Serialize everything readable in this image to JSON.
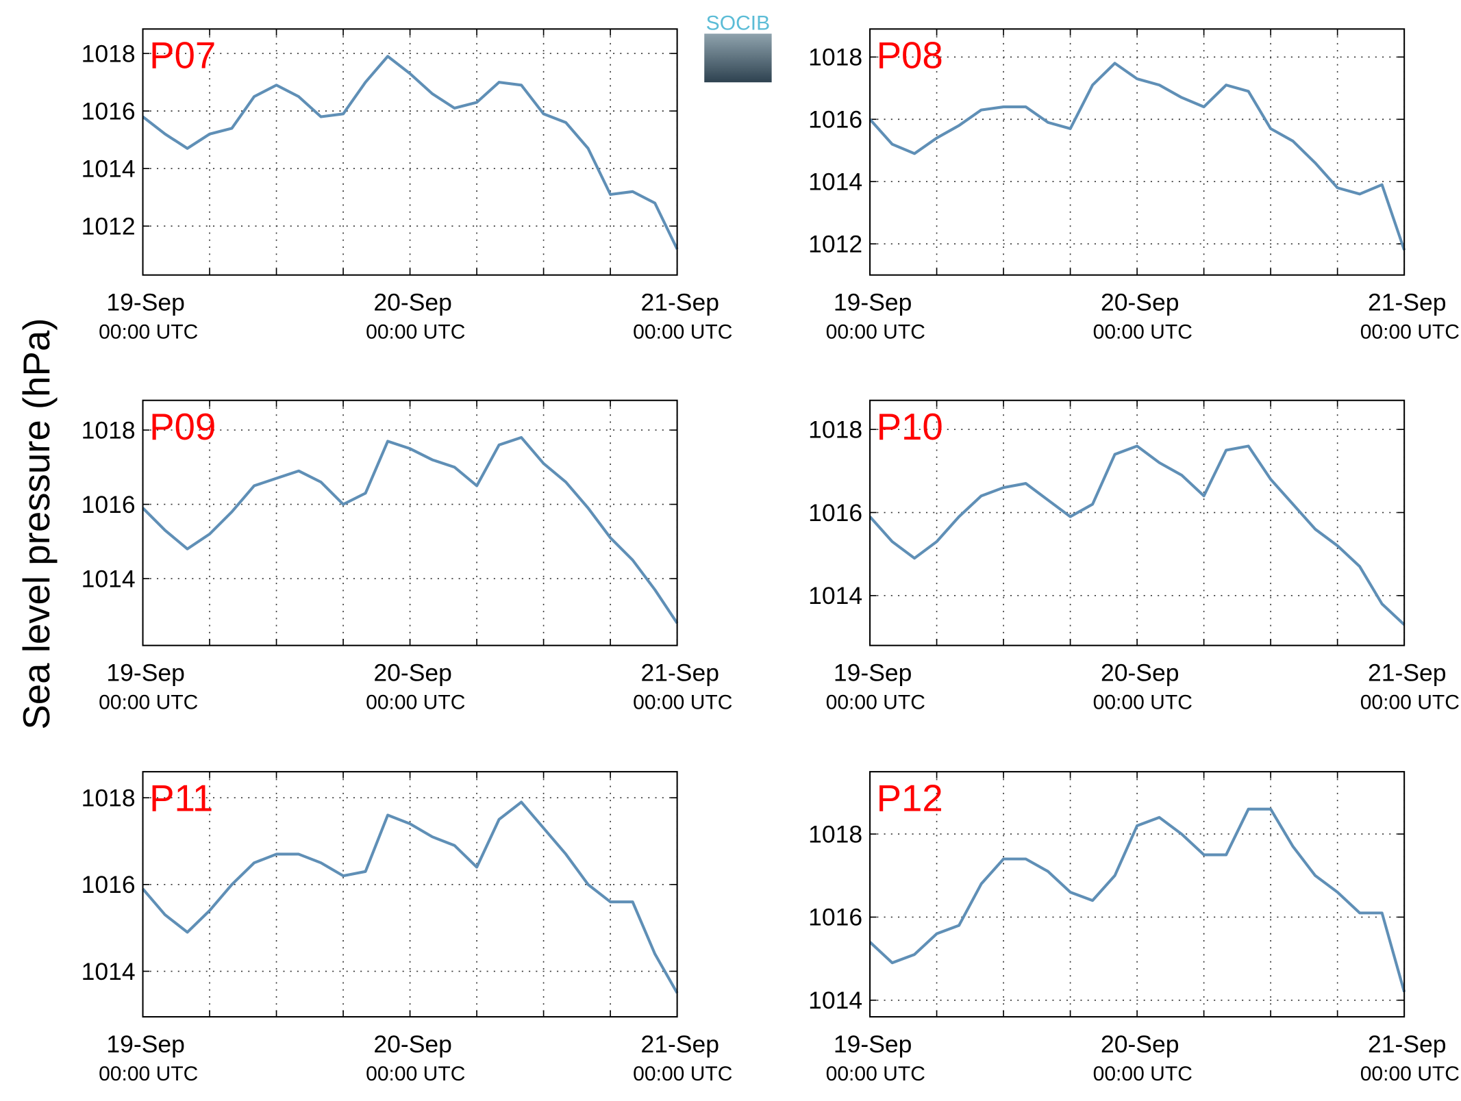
{
  "ylabel": "Sea level pressure (hPa)",
  "logo": "SOCIB",
  "chart_data": [
    {
      "type": "line",
      "title": "P07",
      "color": "#5f8fb6",
      "x": [
        "19-Sep 00:00",
        "19-Sep 02:00",
        "19-Sep 04:00",
        "19-Sep 06:00",
        "19-Sep 08:00",
        "19-Sep 10:00",
        "19-Sep 12:00",
        "19-Sep 14:00",
        "19-Sep 16:00",
        "19-Sep 18:00",
        "19-Sep 20:00",
        "19-Sep 22:00",
        "20-Sep 00:00",
        "20-Sep 02:00",
        "20-Sep 04:00",
        "20-Sep 06:00",
        "20-Sep 08:00",
        "20-Sep 10:00",
        "20-Sep 12:00",
        "20-Sep 14:00",
        "20-Sep 16:00",
        "20-Sep 18:00",
        "20-Sep 20:00",
        "20-Sep 22:00",
        "21-Sep 00:00"
      ],
      "values": [
        1015.8,
        1015.2,
        1014.7,
        1015.2,
        1015.4,
        1016.5,
        1016.9,
        1016.5,
        1015.8,
        1015.9,
        1017.0,
        1017.9,
        1017.3,
        1016.6,
        1016.1,
        1016.3,
        1017.0,
        1016.9,
        1015.9,
        1015.6,
        1014.7,
        1013.1,
        1013.2,
        1012.8,
        1011.2
      ],
      "ylim": [
        1010.3,
        1018.85
      ],
      "yticks": [
        1012,
        1014,
        1016,
        1018
      ],
      "xlim": [
        "19-Sep 00:00",
        "21-Sep 00:00"
      ],
      "xticks": [
        {
          "value": "19-Sep 00:00",
          "label": [
            "19-Sep",
            "00:00 UTC"
          ]
        },
        {
          "value": "19-Sep 06:00",
          "label": null
        },
        {
          "value": "19-Sep 12:00",
          "label": null
        },
        {
          "value": "19-Sep 18:00",
          "label": null
        },
        {
          "value": "20-Sep 00:00",
          "label": [
            "20-Sep",
            "00:00 UTC"
          ]
        },
        {
          "value": "20-Sep 06:00",
          "label": null
        },
        {
          "value": "20-Sep 12:00",
          "label": null
        },
        {
          "value": "20-Sep 18:00",
          "label": null
        },
        {
          "value": "21-Sep 00:00",
          "label": [
            "21-Sep",
            "00:00 UTC"
          ]
        }
      ],
      "grid": true
    },
    {
      "type": "line",
      "title": "P08",
      "color": "#5f8fb6",
      "x": [
        "19-Sep 00:00",
        "19-Sep 02:00",
        "19-Sep 04:00",
        "19-Sep 06:00",
        "19-Sep 08:00",
        "19-Sep 10:00",
        "19-Sep 12:00",
        "19-Sep 14:00",
        "19-Sep 16:00",
        "19-Sep 18:00",
        "19-Sep 20:00",
        "19-Sep 22:00",
        "20-Sep 00:00",
        "20-Sep 02:00",
        "20-Sep 04:00",
        "20-Sep 06:00",
        "20-Sep 08:00",
        "20-Sep 10:00",
        "20-Sep 12:00",
        "20-Sep 14:00",
        "20-Sep 16:00",
        "20-Sep 18:00",
        "20-Sep 20:00",
        "20-Sep 22:00",
        "21-Sep 00:00"
      ],
      "values": [
        1016.0,
        1015.2,
        1014.9,
        1015.4,
        1015.8,
        1016.3,
        1016.4,
        1016.4,
        1015.9,
        1015.7,
        1017.1,
        1017.8,
        1017.3,
        1017.1,
        1016.7,
        1016.4,
        1017.1,
        1016.9,
        1015.7,
        1015.3,
        1014.6,
        1013.8,
        1013.6,
        1013.9,
        1011.8
      ],
      "ylim": [
        1011.0,
        1018.9
      ],
      "yticks": [
        1012,
        1014,
        1016,
        1018
      ],
      "xlim": [
        "19-Sep 00:00",
        "21-Sep 00:00"
      ],
      "xticks": [
        {
          "value": "19-Sep 00:00",
          "label": [
            "19-Sep",
            "00:00 UTC"
          ]
        },
        {
          "value": "19-Sep 06:00",
          "label": null
        },
        {
          "value": "19-Sep 12:00",
          "label": null
        },
        {
          "value": "19-Sep 18:00",
          "label": null
        },
        {
          "value": "20-Sep 00:00",
          "label": [
            "20-Sep",
            "00:00 UTC"
          ]
        },
        {
          "value": "20-Sep 06:00",
          "label": null
        },
        {
          "value": "20-Sep 12:00",
          "label": null
        },
        {
          "value": "20-Sep 18:00",
          "label": null
        },
        {
          "value": "21-Sep 00:00",
          "label": [
            "21-Sep",
            "00:00 UTC"
          ]
        }
      ],
      "grid": true
    },
    {
      "type": "line",
      "title": "P09",
      "color": "#5f8fb6",
      "x": [
        "19-Sep 00:00",
        "19-Sep 02:00",
        "19-Sep 04:00",
        "19-Sep 06:00",
        "19-Sep 08:00",
        "19-Sep 10:00",
        "19-Sep 12:00",
        "19-Sep 14:00",
        "19-Sep 16:00",
        "19-Sep 18:00",
        "19-Sep 20:00",
        "19-Sep 22:00",
        "20-Sep 00:00",
        "20-Sep 02:00",
        "20-Sep 04:00",
        "20-Sep 06:00",
        "20-Sep 08:00",
        "20-Sep 10:00",
        "20-Sep 12:00",
        "20-Sep 14:00",
        "20-Sep 16:00",
        "20-Sep 18:00",
        "20-Sep 20:00",
        "20-Sep 22:00",
        "21-Sep 00:00"
      ],
      "values": [
        1015.9,
        1015.3,
        1014.8,
        1015.2,
        1015.8,
        1016.5,
        1016.7,
        1016.9,
        1016.6,
        1016.0,
        1016.3,
        1017.7,
        1017.5,
        1017.2,
        1017.0,
        1016.5,
        1017.6,
        1017.8,
        1017.1,
        1016.6,
        1015.9,
        1015.1,
        1014.5,
        1013.7,
        1012.8
      ],
      "ylim": [
        1012.2,
        1018.8
      ],
      "yticks": [
        1014,
        1016,
        1018
      ],
      "xlim": [
        "19-Sep 00:00",
        "21-Sep 00:00"
      ],
      "xticks": [
        {
          "value": "19-Sep 00:00",
          "label": [
            "19-Sep",
            "00:00 UTC"
          ]
        },
        {
          "value": "19-Sep 06:00",
          "label": null
        },
        {
          "value": "19-Sep 12:00",
          "label": null
        },
        {
          "value": "19-Sep 18:00",
          "label": null
        },
        {
          "value": "20-Sep 00:00",
          "label": [
            "20-Sep",
            "00:00 UTC"
          ]
        },
        {
          "value": "20-Sep 06:00",
          "label": null
        },
        {
          "value": "20-Sep 12:00",
          "label": null
        },
        {
          "value": "20-Sep 18:00",
          "label": null
        },
        {
          "value": "21-Sep 00:00",
          "label": [
            "21-Sep",
            "00:00 UTC"
          ]
        }
      ],
      "grid": true
    },
    {
      "type": "line",
      "title": "P10",
      "color": "#5f8fb6",
      "x": [
        "19-Sep 00:00",
        "19-Sep 02:00",
        "19-Sep 04:00",
        "19-Sep 06:00",
        "19-Sep 08:00",
        "19-Sep 10:00",
        "19-Sep 12:00",
        "19-Sep 14:00",
        "19-Sep 16:00",
        "19-Sep 18:00",
        "19-Sep 20:00",
        "19-Sep 22:00",
        "20-Sep 00:00",
        "20-Sep 02:00",
        "20-Sep 04:00",
        "20-Sep 06:00",
        "20-Sep 08:00",
        "20-Sep 10:00",
        "20-Sep 12:00",
        "20-Sep 14:00",
        "20-Sep 16:00",
        "20-Sep 18:00",
        "20-Sep 20:00",
        "20-Sep 22:00",
        "21-Sep 00:00"
      ],
      "values": [
        1015.9,
        1015.3,
        1014.9,
        1015.3,
        1015.9,
        1016.4,
        1016.6,
        1016.7,
        1016.3,
        1015.9,
        1016.2,
        1017.4,
        1017.6,
        1017.2,
        1016.9,
        1016.4,
        1017.5,
        1017.6,
        1016.8,
        1016.2,
        1015.6,
        1015.2,
        1014.7,
        1013.8,
        1013.3
      ],
      "ylim": [
        1012.8,
        1018.7
      ],
      "yticks": [
        1014,
        1016,
        1018
      ],
      "xlim": [
        "19-Sep 00:00",
        "21-Sep 00:00"
      ],
      "xticks": [
        {
          "value": "19-Sep 00:00",
          "label": [
            "19-Sep",
            "00:00 UTC"
          ]
        },
        {
          "value": "19-Sep 06:00",
          "label": null
        },
        {
          "value": "19-Sep 12:00",
          "label": null
        },
        {
          "value": "19-Sep 18:00",
          "label": null
        },
        {
          "value": "20-Sep 00:00",
          "label": [
            "20-Sep",
            "00:00 UTC"
          ]
        },
        {
          "value": "20-Sep 06:00",
          "label": null
        },
        {
          "value": "20-Sep 12:00",
          "label": null
        },
        {
          "value": "20-Sep 18:00",
          "label": null
        },
        {
          "value": "21-Sep 00:00",
          "label": [
            "21-Sep",
            "00:00 UTC"
          ]
        }
      ],
      "grid": true
    },
    {
      "type": "line",
      "title": "P11",
      "color": "#5f8fb6",
      "x": [
        "19-Sep 00:00",
        "19-Sep 02:00",
        "19-Sep 04:00",
        "19-Sep 06:00",
        "19-Sep 08:00",
        "19-Sep 10:00",
        "19-Sep 12:00",
        "19-Sep 14:00",
        "19-Sep 16:00",
        "19-Sep 18:00",
        "19-Sep 20:00",
        "19-Sep 22:00",
        "20-Sep 00:00",
        "20-Sep 02:00",
        "20-Sep 04:00",
        "20-Sep 06:00",
        "20-Sep 08:00",
        "20-Sep 10:00",
        "20-Sep 12:00",
        "20-Sep 14:00",
        "20-Sep 16:00",
        "20-Sep 18:00",
        "20-Sep 20:00",
        "20-Sep 22:00",
        "21-Sep 00:00"
      ],
      "values": [
        1015.9,
        1015.3,
        1014.9,
        1015.4,
        1016.0,
        1016.5,
        1016.7,
        1016.7,
        1016.5,
        1016.2,
        1016.3,
        1017.6,
        1017.4,
        1017.1,
        1016.9,
        1016.4,
        1017.5,
        1017.9,
        1017.3,
        1016.7,
        1016.0,
        1015.6,
        1015.6,
        1014.4,
        1013.5
      ],
      "ylim": [
        1012.95,
        1018.6
      ],
      "yticks": [
        1014,
        1016,
        1018
      ],
      "xlim": [
        "19-Sep 00:00",
        "21-Sep 00:00"
      ],
      "xticks": [
        {
          "value": "19-Sep 00:00",
          "label": [
            "19-Sep",
            "00:00 UTC"
          ]
        },
        {
          "value": "19-Sep 06:00",
          "label": null
        },
        {
          "value": "19-Sep 12:00",
          "label": null
        },
        {
          "value": "19-Sep 18:00",
          "label": null
        },
        {
          "value": "20-Sep 00:00",
          "label": [
            "20-Sep",
            "00:00 UTC"
          ]
        },
        {
          "value": "20-Sep 06:00",
          "label": null
        },
        {
          "value": "20-Sep 12:00",
          "label": null
        },
        {
          "value": "20-Sep 18:00",
          "label": null
        },
        {
          "value": "21-Sep 00:00",
          "label": [
            "21-Sep",
            "00:00 UTC"
          ]
        }
      ],
      "grid": true
    },
    {
      "type": "line",
      "title": "P12",
      "color": "#5f8fb6",
      "x": [
        "19-Sep 00:00",
        "19-Sep 02:00",
        "19-Sep 04:00",
        "19-Sep 06:00",
        "19-Sep 08:00",
        "19-Sep 10:00",
        "19-Sep 12:00",
        "19-Sep 14:00",
        "19-Sep 16:00",
        "19-Sep 18:00",
        "19-Sep 20:00",
        "19-Sep 22:00",
        "20-Sep 00:00",
        "20-Sep 02:00",
        "20-Sep 04:00",
        "20-Sep 06:00",
        "20-Sep 08:00",
        "20-Sep 10:00",
        "20-Sep 12:00",
        "20-Sep 14:00",
        "20-Sep 16:00",
        "20-Sep 18:00",
        "20-Sep 20:00",
        "20-Sep 22:00",
        "21-Sep 00:00"
      ],
      "values": [
        1015.4,
        1014.9,
        1015.1,
        1015.6,
        1015.8,
        1016.8,
        1017.4,
        1017.4,
        1017.1,
        1016.6,
        1016.4,
        1017.0,
        1018.2,
        1018.4,
        1018.0,
        1017.5,
        1017.5,
        1018.6,
        1018.6,
        1017.7,
        1017.0,
        1016.6,
        1016.1,
        1016.1,
        1014.2
      ],
      "ylim": [
        1013.6,
        1019.5
      ],
      "yticks": [
        1014,
        1016,
        1018
      ],
      "xlim": [
        "19-Sep 00:00",
        "21-Sep 00:00"
      ],
      "xticks": [
        {
          "value": "19-Sep 00:00",
          "label": [
            "19-Sep",
            "00:00 UTC"
          ]
        },
        {
          "value": "19-Sep 06:00",
          "label": null
        },
        {
          "value": "19-Sep 12:00",
          "label": null
        },
        {
          "value": "19-Sep 18:00",
          "label": null
        },
        {
          "value": "20-Sep 00:00",
          "label": [
            "20-Sep",
            "00:00 UTC"
          ]
        },
        {
          "value": "20-Sep 06:00",
          "label": null
        },
        {
          "value": "20-Sep 12:00",
          "label": null
        },
        {
          "value": "20-Sep 18:00",
          "label": null
        },
        {
          "value": "21-Sep 00:00",
          "label": [
            "21-Sep",
            "00:00 UTC"
          ]
        }
      ],
      "grid": true
    }
  ]
}
